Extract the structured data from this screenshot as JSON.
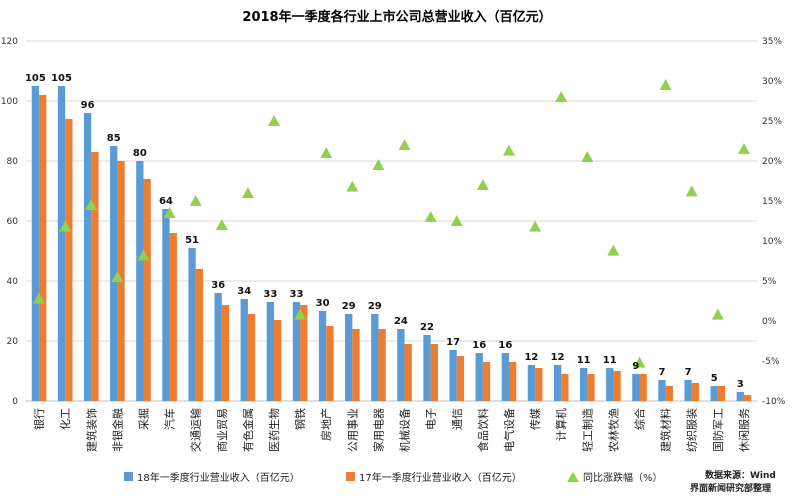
{
  "chart_data": {
    "type": "bar",
    "title": "2018年一季度各行业上市公司总营业收入（百亿元）",
    "categories": [
      "银行",
      "化工",
      "建筑装饰",
      "非银金融",
      "采掘",
      "汽车",
      "交通运输",
      "商业贸易",
      "有色金属",
      "医药生物",
      "钢铁",
      "房地产",
      "公用事业",
      "家用电器",
      "机械设备",
      "电子",
      "通信",
      "食品饮料",
      "电气设备",
      "传媒",
      "计算机",
      "轻工制造",
      "农林牧渔",
      "综合",
      "建筑材料",
      "纺织服装",
      "国防军工",
      "休闲服务"
    ],
    "series": [
      {
        "name": "18年一季度行业营业收入（百亿元）",
        "color": "#5B9BD5",
        "axis": "left",
        "values": [
          105,
          105,
          96,
          85,
          80,
          64,
          51,
          36,
          34,
          33,
          33,
          30,
          29,
          29,
          24,
          22,
          17,
          16,
          16,
          12,
          12,
          11,
          11,
          9,
          7,
          7,
          5,
          3
        ]
      },
      {
        "name": "17年一季度行业营业收入（百亿元）",
        "color": "#ED7D31",
        "axis": "left",
        "values": [
          102,
          94,
          83,
          80,
          74,
          56,
          44,
          32,
          29,
          27,
          32,
          25,
          24,
          24,
          19,
          19,
          15,
          13,
          13,
          11,
          9,
          9,
          10,
          9,
          5,
          6,
          5,
          2
        ]
      },
      {
        "name": "同比涨跌幅（%）",
        "type": "scatter",
        "marker": "triangle",
        "color": "#92D050",
        "axis": "right",
        "values": [
          2.8,
          11.8,
          14.5,
          5.5,
          8.2,
          13.5,
          15.0,
          12.0,
          16.0,
          25.0,
          0.8,
          21.0,
          16.8,
          19.5,
          22.0,
          13.0,
          12.5,
          17.0,
          21.3,
          11.8,
          28.0,
          20.5,
          8.8,
          -5.2,
          29.5,
          16.2,
          0.8,
          21.5
        ]
      }
    ],
    "ylim_left": [
      0,
      120
    ],
    "yticks_left": [
      "0",
      "20",
      "40",
      "60",
      "80",
      "100",
      "120"
    ],
    "ylim_right": [
      -10,
      35
    ],
    "yticks_right": [
      "-10%",
      "-5%",
      "0%",
      "5%",
      "10%",
      "15%",
      "20%",
      "25%",
      "30%",
      "35%"
    ],
    "data_labels": [
      "105",
      "105",
      "96",
      "85",
      "80",
      "64",
      "51",
      "36",
      "34",
      "33",
      "33",
      "30",
      "29",
      "29",
      "24",
      "22",
      "17",
      "16",
      "16",
      "12",
      "12",
      "11",
      "11",
      "9",
      "7",
      "7",
      "5",
      "3"
    ],
    "legend_position": "bottom",
    "source_lines": [
      "数据来源：Wind",
      "界面新闻研究部整理"
    ]
  }
}
